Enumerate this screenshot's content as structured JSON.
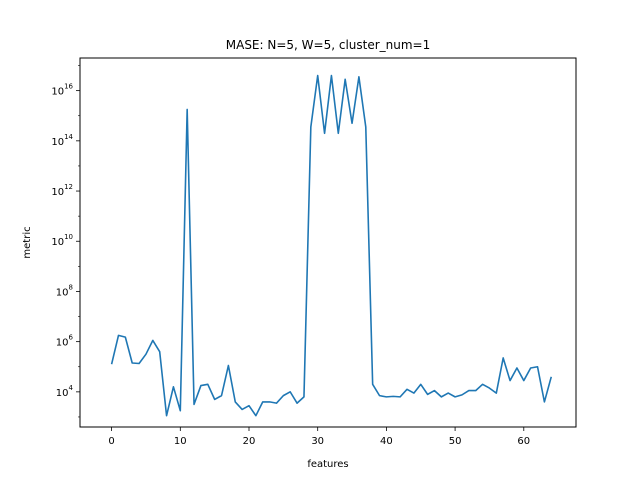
{
  "chart_data": {
    "type": "line",
    "title": "MASE: N=5, W=5, cluster_num=1",
    "xlabel": "features",
    "ylabel": "metric",
    "yscale": "log",
    "xlim": [
      -4.6,
      67.6
    ],
    "ylim_log10": [
      2.6,
      17.3
    ],
    "grid": false,
    "line_color": "#1f77b4",
    "x_ticks": [
      0,
      10,
      20,
      30,
      40,
      50,
      60
    ],
    "y_ticks": [
      {
        "exp": 4,
        "base": "10",
        "sup": "4"
      },
      {
        "exp": 6,
        "base": "10",
        "sup": "6"
      },
      {
        "exp": 8,
        "base": "10",
        "sup": "8"
      },
      {
        "exp": 10,
        "base": "10",
        "sup": "10"
      },
      {
        "exp": 12,
        "base": "10",
        "sup": "12"
      },
      {
        "exp": 14,
        "base": "10",
        "sup": "14"
      },
      {
        "exp": 16,
        "base": "10",
        "sup": "16"
      }
    ],
    "series": [
      {
        "name": "metric",
        "x": [
          0,
          1,
          2,
          3,
          4,
          5,
          6,
          7,
          8,
          9,
          10,
          11,
          12,
          13,
          14,
          15,
          16,
          17,
          18,
          19,
          20,
          21,
          22,
          23,
          24,
          25,
          26,
          27,
          28,
          29,
          30,
          31,
          32,
          33,
          34,
          35,
          36,
          37,
          38,
          39,
          40,
          41,
          42,
          43,
          44,
          45,
          46,
          47,
          48,
          49,
          50,
          51,
          52,
          53,
          54,
          55,
          56,
          57,
          58,
          59,
          60,
          61,
          62,
          63,
          64
        ],
        "log10_values": [
          5.1,
          6.25,
          6.18,
          5.15,
          5.13,
          5.5,
          6.05,
          5.6,
          3.05,
          4.2,
          3.25,
          15.25,
          3.5,
          4.25,
          4.3,
          3.7,
          3.85,
          5.05,
          3.6,
          3.3,
          3.45,
          3.05,
          3.6,
          3.6,
          3.55,
          3.85,
          4.0,
          3.55,
          3.8,
          14.55,
          16.6,
          14.3,
          16.6,
          14.3,
          16.45,
          14.7,
          16.55,
          14.55,
          4.3,
          3.85,
          3.8,
          3.82,
          3.8,
          4.1,
          3.95,
          4.3,
          3.9,
          4.05,
          3.8,
          3.95,
          3.8,
          3.88,
          4.05,
          4.05,
          4.3,
          4.15,
          3.95,
          5.35,
          4.45,
          4.95,
          4.45,
          4.95,
          5.0,
          3.6,
          4.6
        ]
      }
    ]
  }
}
